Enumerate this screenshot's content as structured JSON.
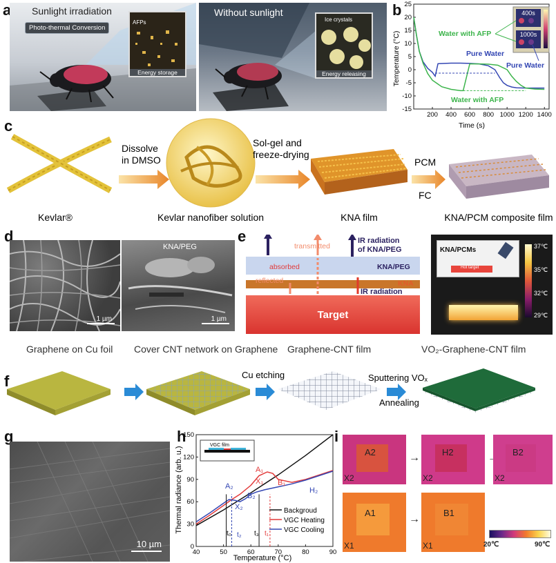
{
  "colors": {
    "kevlar_yellow": "#e3c23a",
    "arrow_orange": "#f2a33a",
    "arrow_blue": "#2a8bd6",
    "target_red": "#e8453c",
    "vo2_green": "#1f6b3a",
    "graphene_olive": "#b9b640",
    "plot_black": "#111111",
    "plot_red": "#e23a3a",
    "plot_blue": "#3346b3",
    "plot_green": "#3cb44b"
  },
  "panel_a": {
    "label": "a",
    "left_title": "Sunlight irradiation",
    "badge": "Photo-thermal Conversion",
    "inset_left_tag": "AFPs",
    "inset_left_caption": "Energy storage",
    "right_title": "Without sunlight",
    "inset_right_tag": "Ice crystals",
    "inset_right_caption": "Energy releasing"
  },
  "panel_b": {
    "label": "b",
    "inset_top": "400s",
    "inset_bottom": "1000s",
    "label_afp_top": "Water with AFP",
    "label_pure_mid": "Pure Water",
    "label_pure_right": "Pure Water",
    "label_afp_bottom": "Water with AFP"
  },
  "panel_c": {
    "label": "c",
    "step1": "Dissolve\nin DMSO",
    "step2": "Sol-gel and\nfreeze-drying",
    "step3_top": "PCM",
    "step3_bottom": "FC",
    "captions": [
      "Kevlar®",
      "Kevlar nanofiber solution",
      "KNA film",
      "KNA/PCM  composite film"
    ]
  },
  "panel_d": {
    "label": "d",
    "scale_left": "1 µm",
    "scale_right": "1 µm",
    "tag_right": "KNA/PEG"
  },
  "panel_e": {
    "label": "e",
    "transmitted": "transmitted",
    "ir_kna_peg": "IR radiation\nof KNA/PEG",
    "absorbed": "absorbed",
    "reflected": "reflected",
    "layer_kna_peg": "KNA/PEG",
    "layer_kna": "KNA",
    "ir_radiation": "IR radiation",
    "target": "Target",
    "inset_label": "KNA/PCMs",
    "inset_target": "Hot target",
    "colorbar": [
      "37℃",
      "35℃",
      "32℃",
      "29℃"
    ]
  },
  "panel_f": {
    "label": "f",
    "captions": [
      "Graphene on Cu foil",
      "Cover CNT network on Graphene",
      "Graphene-CNT film",
      "VO₂-Graphene-CNT film"
    ],
    "step_cu": "Cu etching",
    "step_sputter": "Sputtering VOₓ",
    "step_anneal": "Annealing"
  },
  "panel_g": {
    "label": "g",
    "scale": "10 µm"
  },
  "panel_h": {
    "label": "h",
    "inset_title": "VGC film",
    "legend": [
      "Backgroud",
      "VGC Heating",
      "VGC Cooling"
    ],
    "points": [
      "A₂",
      "A₁",
      "X₂",
      "X₁",
      "B₂",
      "B₁",
      "H₂"
    ],
    "tlabels": [
      "t₀",
      "t₂",
      "t₃",
      "t₁"
    ]
  },
  "panel_i": {
    "label": "i",
    "top_inner": [
      "A2",
      "H2",
      "B2"
    ],
    "top_corner": [
      "X2",
      "X2",
      "X2"
    ],
    "bottom_inner": [
      "A1",
      "B1"
    ],
    "bottom_corner": [
      "X1",
      "X1"
    ],
    "colorbar_min": "20℃",
    "colorbar_max": "90℃"
  },
  "chart_data": [
    {
      "type": "line",
      "xlabel": "Time (s)",
      "ylabel": "Temperature (°C)",
      "xlim": [
        0,
        1450
      ],
      "ylim": [
        -15,
        25
      ],
      "xticks": [
        200,
        400,
        600,
        800,
        1000,
        1200,
        1400
      ],
      "yticks": [
        -15,
        -10,
        -5,
        0,
        5,
        10,
        15,
        20,
        25
      ],
      "series": [
        {
          "name": "Pure Water",
          "color": "#3346b3",
          "x": [
            0,
            30,
            60,
            100,
            150,
            200,
            230,
            260,
            400,
            500,
            600,
            700,
            800,
            870,
            920,
            960,
            1000,
            1050,
            1100,
            1200,
            1300,
            1400
          ],
          "y": [
            20,
            13,
            7,
            3,
            0.5,
            -1,
            -2.5,
            2.3,
            2.5,
            2.5,
            2.4,
            2.2,
            1.5,
            0,
            -3,
            -5,
            -6,
            -6.6,
            -6.9,
            -7,
            -7,
            -7
          ]
        },
        {
          "name": "Water with AFP",
          "color": "#3cb44b",
          "x": [
            0,
            30,
            60,
            100,
            150,
            200,
            300,
            400,
            500,
            530,
            600,
            700,
            800,
            900,
            1000,
            1050,
            1100,
            1150,
            1200,
            1300,
            1400
          ],
          "y": [
            20,
            13,
            7,
            2.5,
            -1.5,
            -4,
            -6.5,
            -7.5,
            -8,
            -8,
            2.2,
            2.2,
            2.1,
            1.7,
            0,
            -2.5,
            -4.5,
            -6,
            -7,
            -7.4,
            -7.5
          ]
        }
      ]
    },
    {
      "type": "line",
      "xlabel": "Temperature (°C)",
      "ylabel": "Thermal radiance (arb. u.)",
      "xlim": [
        40,
        90
      ],
      "ylim": [
        0,
        150
      ],
      "xticks": [
        40,
        50,
        60,
        70,
        80,
        90
      ],
      "yticks": [
        0,
        30,
        60,
        90,
        120,
        150
      ],
      "series": [
        {
          "name": "Backgroud",
          "color": "#111111",
          "x": [
            40,
            50,
            60,
            70,
            80,
            90
          ],
          "y": [
            28,
            49,
            72,
            96,
            122,
            150
          ]
        },
        {
          "name": "VGC Heating",
          "color": "#e23a3a",
          "x": [
            40,
            45,
            50,
            53,
            56,
            60,
            63,
            66,
            68,
            70,
            75,
            80,
            85,
            90
          ],
          "y": [
            30,
            42,
            55,
            63,
            70,
            82,
            95,
            100,
            98,
            90,
            86,
            90,
            96,
            102
          ]
        },
        {
          "name": "VGC Cooling",
          "color": "#3346b3",
          "x": [
            90,
            85,
            80,
            75,
            70,
            65,
            62,
            60,
            58,
            56,
            54,
            52,
            50,
            45,
            40
          ],
          "y": [
            101,
            95,
            89,
            84,
            80,
            76,
            73,
            70,
            64,
            60,
            62,
            63,
            58,
            45,
            33
          ]
        }
      ]
    }
  ]
}
